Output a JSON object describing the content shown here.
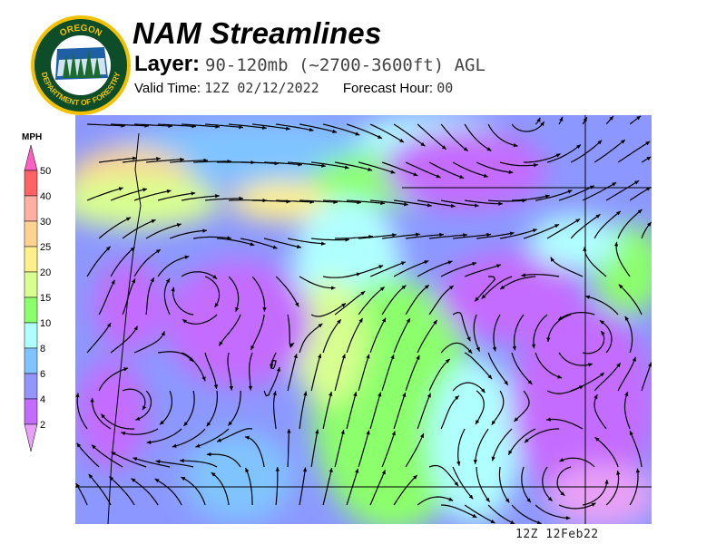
{
  "logo": {
    "top_text": "OREGON",
    "bottom_text": "DEPARTMENT OF FORESTRY"
  },
  "header": {
    "title": "NAM Streamlines",
    "layer_label": "Layer:",
    "layer_value": "90-120mb (~2700-3600ft) AGL",
    "valid_label": "Valid Time:",
    "valid_value": "12Z 02/12/2022",
    "forecast_label": "Forecast Hour:",
    "forecast_value": "00"
  },
  "legend": {
    "unit": "MPH",
    "over_color": "#ff5fc0",
    "under_color": "#e8a0f6",
    "bins": [
      {
        "label": "50",
        "color": "#ff6363"
      },
      {
        "label": "40",
        "color": "#ffb0a0"
      },
      {
        "label": "30",
        "color": "#ffd292"
      },
      {
        "label": "25",
        "color": "#fff08c"
      },
      {
        "label": "20",
        "color": "#d8ff90"
      },
      {
        "label": "15",
        "color": "#8cff6c"
      },
      {
        "label": "10",
        "color": "#b0ffff"
      },
      {
        "label": "8",
        "color": "#80c4ff"
      },
      {
        "label": "6",
        "color": "#9494ff"
      },
      {
        "label": "4",
        "color": "#c46cff"
      },
      {
        "label": "2",
        "color": null
      }
    ]
  },
  "footer": {
    "timestamp": "12Z 12Feb22"
  }
}
